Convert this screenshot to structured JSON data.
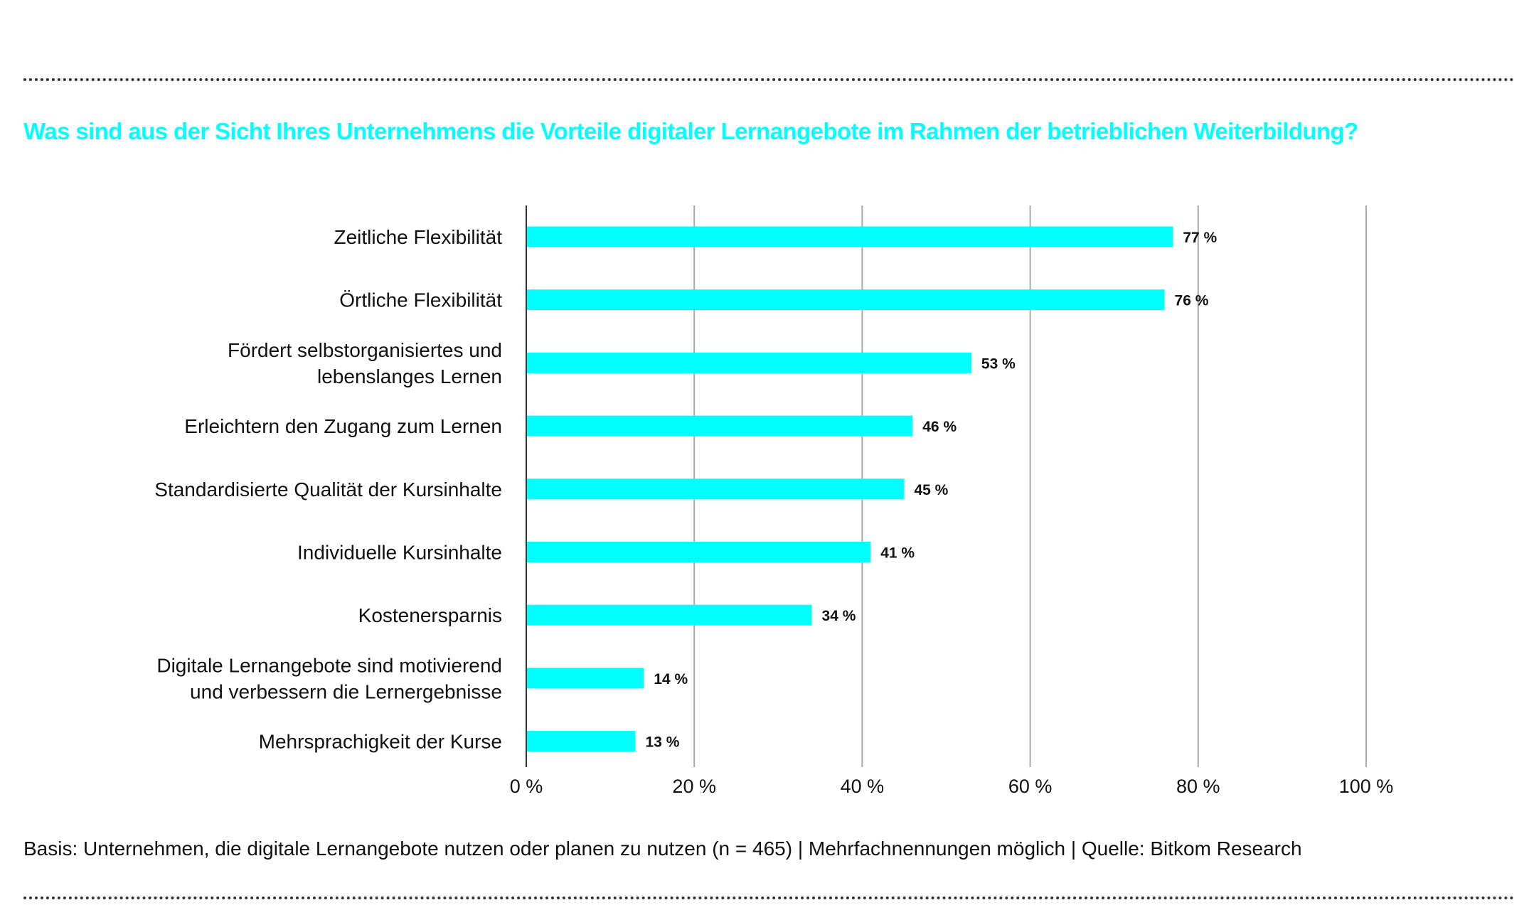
{
  "chart_data": {
    "type": "bar",
    "orientation": "horizontal",
    "title": "Was sind aus der Sicht Ihres Unternehmens die Vorteile digitaler Lernangebote im Rahmen der betrieblichen Weiterbildung?",
    "categories": [
      [
        "Zeitliche Flexibilität"
      ],
      [
        "Örtliche Flexibilität"
      ],
      [
        "Fördert selbstorganisiertes und",
        "lebenslanges Lernen"
      ],
      [
        "Erleichtern den Zugang zum Lernen"
      ],
      [
        "Standardisierte Qualität der Kursinhalte"
      ],
      [
        "Individuelle Kursinhalte"
      ],
      [
        "Kostenersparnis"
      ],
      [
        "Digitale Lernangebote sind motivierend",
        "und verbessern die Lernergebnisse"
      ],
      [
        "Mehrsprachigkeit der Kurse"
      ]
    ],
    "values": [
      77,
      76,
      53,
      46,
      45,
      41,
      34,
      14,
      13
    ],
    "data_labels": [
      "77 %",
      "76 %",
      "53 %",
      "46 %",
      "45 %",
      "41 %",
      "34 %",
      "14 %",
      "13 %"
    ],
    "xlim": [
      0,
      100
    ],
    "xticks": [
      0,
      20,
      40,
      60,
      80,
      100
    ],
    "xtick_labels": [
      "0 %",
      "20 %",
      "40 %",
      "60 %",
      "80 %",
      "100 %"
    ],
    "grid": true,
    "bar_color": "#00ffff",
    "title_color": "#00ffff"
  },
  "footer": "Basis: Unternehmen, die digitale Lernangebote nutzen oder planen zu nutzen (n = 465) | Mehrfachnennungen möglich | Quelle: Bitkom Research"
}
